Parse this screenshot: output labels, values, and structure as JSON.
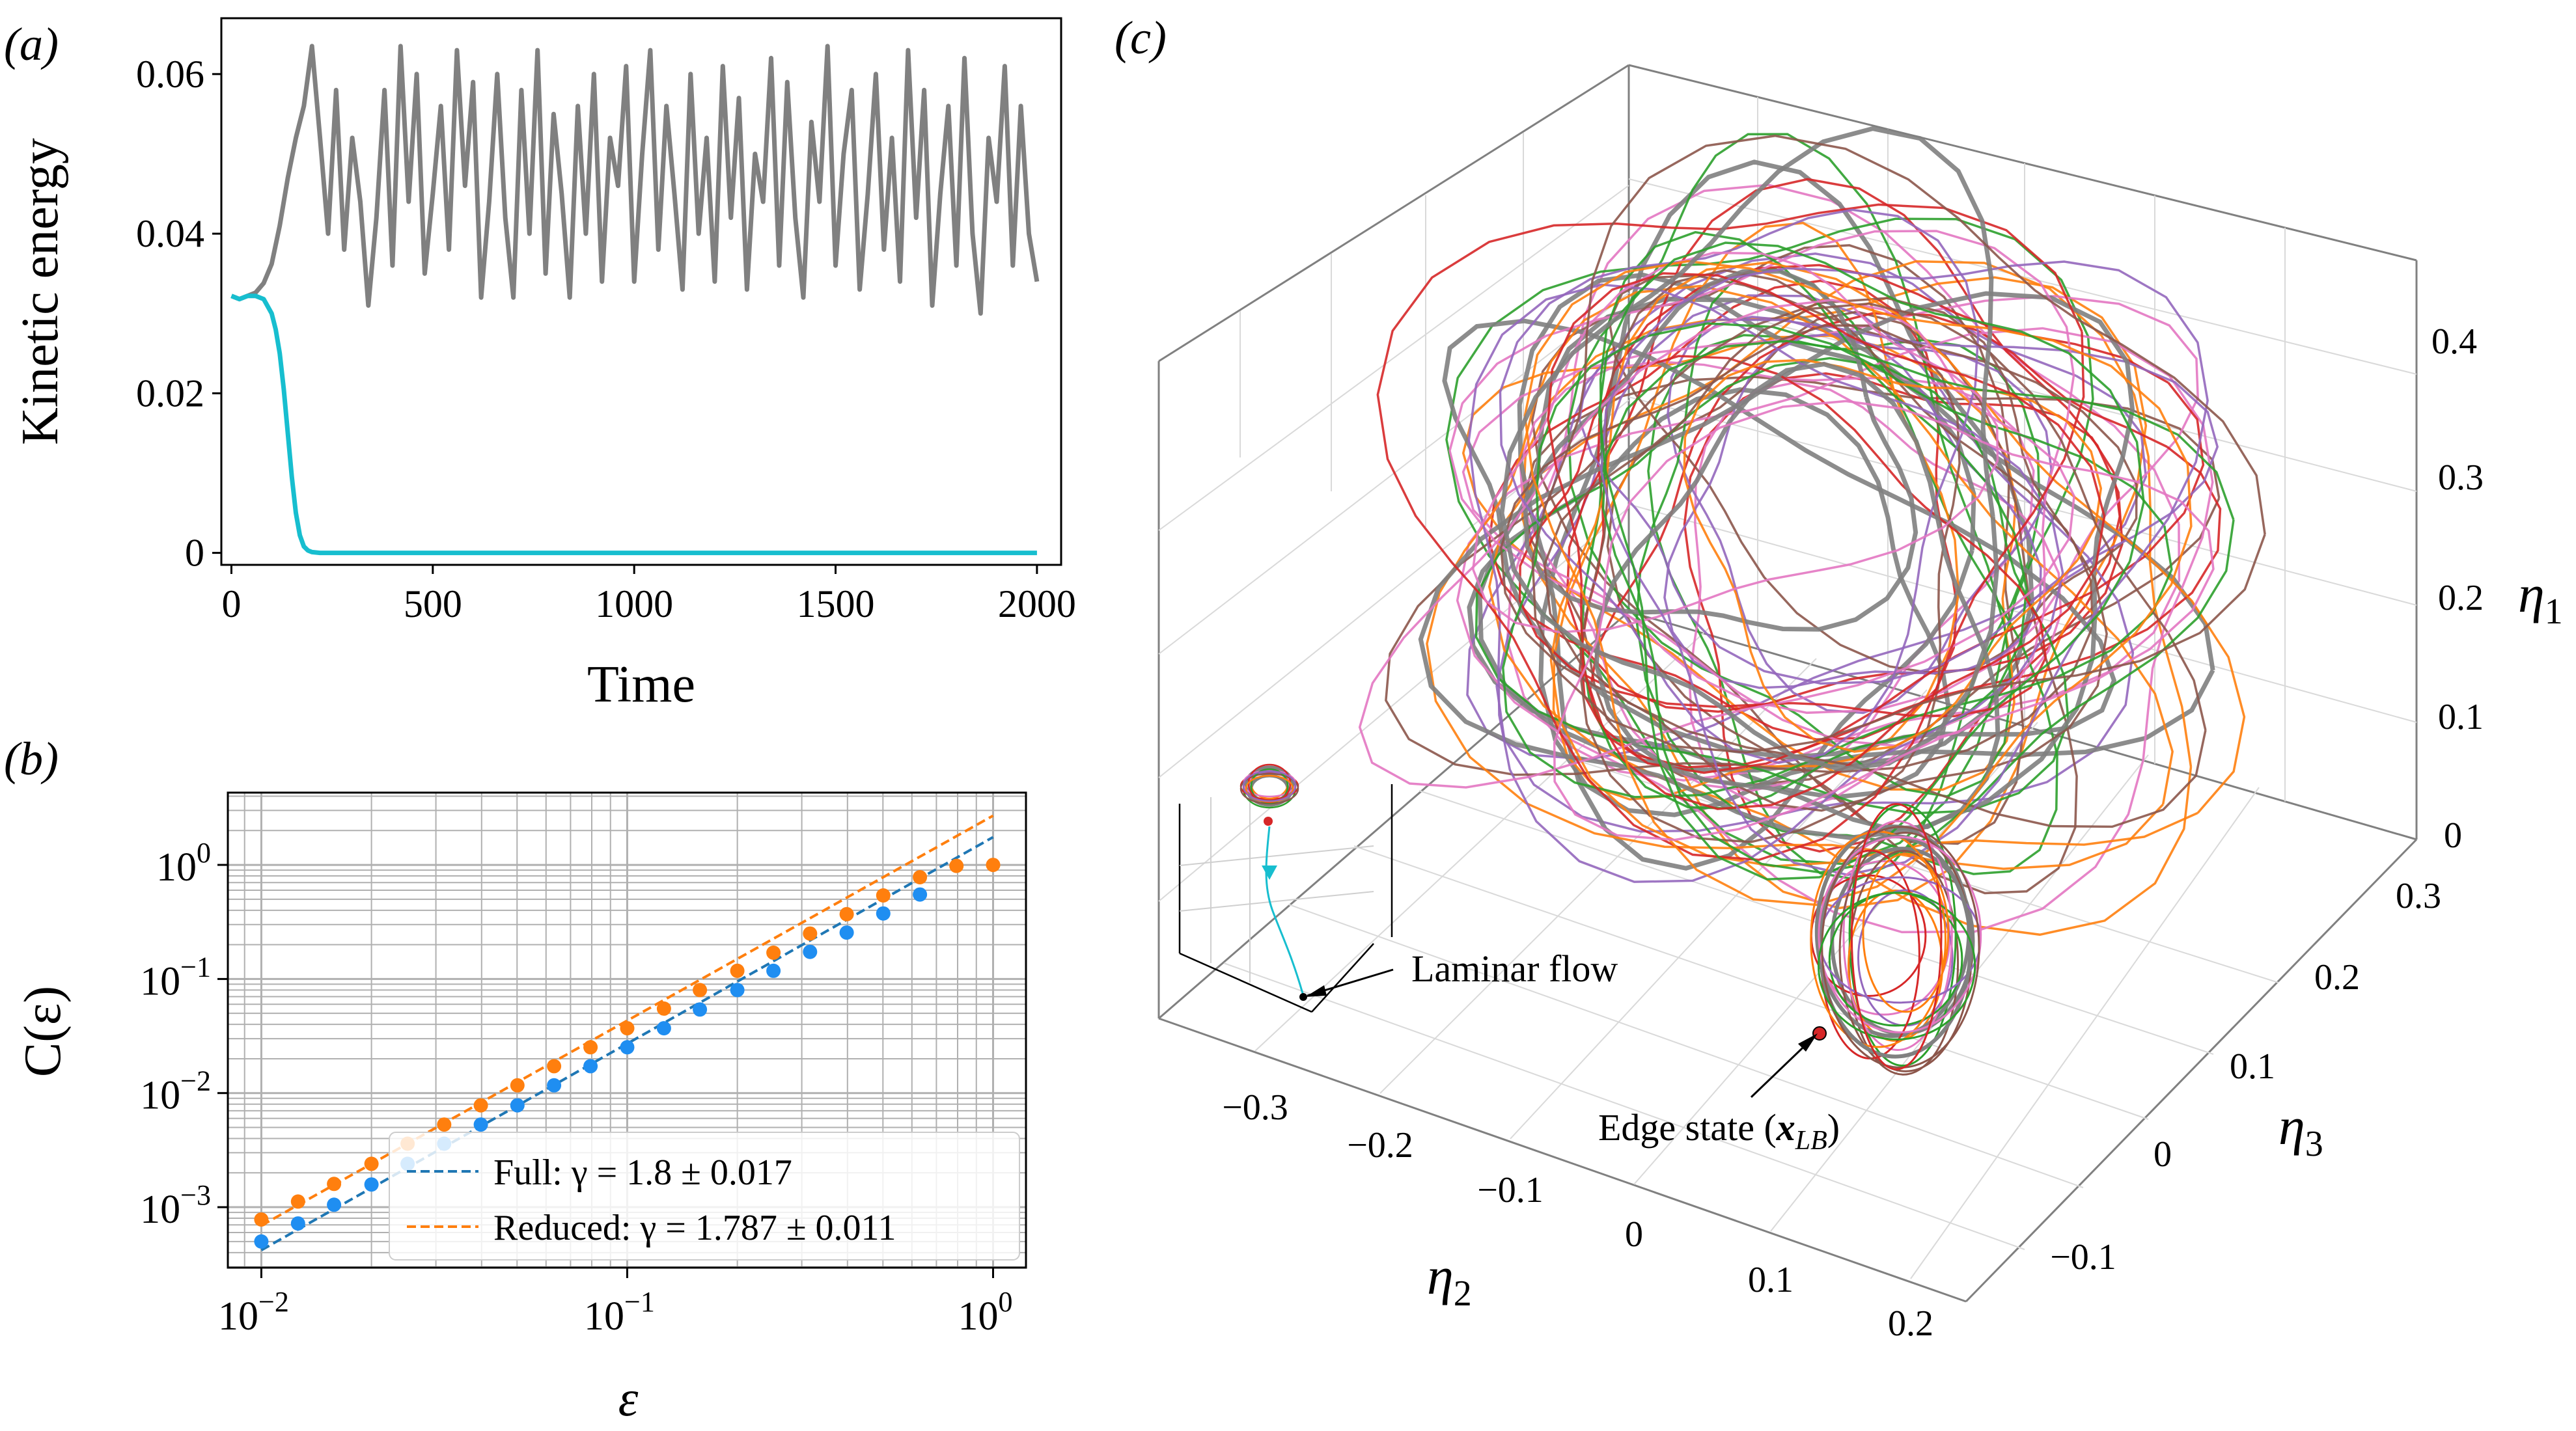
{
  "panel_labels": {
    "a": "(a)",
    "b": "(b)",
    "c": "(c)"
  },
  "colors": {
    "turbulent": "#808080",
    "laminar": "#17becf",
    "full": "#1f77b4",
    "full_marker": "#1f8ef1",
    "reduced": "#ff7f0e",
    "grid": "#b0b0b0",
    "traj": [
      "#808080",
      "#e377c2",
      "#8c564b",
      "#2ca02c",
      "#d62728",
      "#ff7f0e",
      "#9467bd"
    ]
  },
  "chart_data": [
    {
      "id": "a",
      "type": "line",
      "xlabel": "Time",
      "ylabel": "Kinetic energy",
      "xlim": [
        -25,
        2060
      ],
      "ylim": [
        -0.0015,
        0.067
      ],
      "xticks": [
        0,
        500,
        1000,
        1500,
        2000
      ],
      "xtick_labels": [
        "0",
        "500",
        "1000",
        "1500",
        "2000"
      ],
      "yticks": [
        0,
        0.02,
        0.04,
        0.06
      ],
      "ytick_labels": [
        "0",
        "0.02",
        "0.04",
        "0.06"
      ],
      "grid": false,
      "series": [
        {
          "color_key": "turbulent",
          "x": [
            0,
            20,
            40,
            60,
            80,
            100,
            120,
            140,
            160,
            180,
            200,
            220,
            240,
            260,
            280,
            300,
            320,
            340,
            360,
            380,
            400,
            420,
            440,
            460,
            480,
            500,
            520,
            540,
            560,
            580,
            600,
            620,
            640,
            660,
            680,
            700,
            720,
            740,
            760,
            780,
            800,
            820,
            840,
            860,
            880,
            900,
            920,
            940,
            960,
            980,
            1000,
            1020,
            1040,
            1060,
            1080,
            1100,
            1120,
            1140,
            1160,
            1180,
            1200,
            1220,
            1240,
            1260,
            1280,
            1300,
            1320,
            1340,
            1360,
            1380,
            1400,
            1420,
            1440,
            1460,
            1480,
            1500,
            1520,
            1540,
            1560,
            1580,
            1600,
            1620,
            1640,
            1660,
            1680,
            1700,
            1720,
            1740,
            1760,
            1780,
            1800,
            1820,
            1840,
            1860,
            1880,
            1900,
            1920,
            1940,
            1960,
            1980,
            2000
          ],
          "y": [
            0.0322,
            0.0318,
            0.0322,
            0.0326,
            0.0338,
            0.0362,
            0.041,
            0.047,
            0.052,
            0.056,
            0.0635,
            0.052,
            0.04,
            0.058,
            0.038,
            0.052,
            0.044,
            0.031,
            0.042,
            0.058,
            0.036,
            0.0635,
            0.044,
            0.06,
            0.035,
            0.045,
            0.056,
            0.038,
            0.063,
            0.046,
            0.059,
            0.032,
            0.044,
            0.06,
            0.042,
            0.032,
            0.058,
            0.04,
            0.063,
            0.035,
            0.055,
            0.045,
            0.032,
            0.056,
            0.04,
            0.06,
            0.034,
            0.052,
            0.046,
            0.061,
            0.034,
            0.05,
            0.063,
            0.038,
            0.056,
            0.045,
            0.033,
            0.06,
            0.04,
            0.052,
            0.034,
            0.061,
            0.042,
            0.057,
            0.033,
            0.05,
            0.044,
            0.062,
            0.036,
            0.059,
            0.042,
            0.032,
            0.054,
            0.044,
            0.0635,
            0.036,
            0.05,
            0.058,
            0.033,
            0.045,
            0.06,
            0.038,
            0.052,
            0.034,
            0.063,
            0.042,
            0.058,
            0.031,
            0.045,
            0.056,
            0.036,
            0.062,
            0.04,
            0.03,
            0.052,
            0.044,
            0.061,
            0.036,
            0.056,
            0.04,
            0.034
          ]
        },
        {
          "color_key": "laminar",
          "x": [
            0,
            20,
            40,
            60,
            80,
            100,
            110,
            120,
            130,
            140,
            150,
            160,
            170,
            180,
            190,
            200,
            220,
            240,
            260,
            300,
            400,
            600,
            800,
            1000,
            1200,
            1400,
            1600,
            1800,
            2000
          ],
          "y": [
            0.0322,
            0.0318,
            0.0322,
            0.0322,
            0.0318,
            0.03,
            0.028,
            0.025,
            0.0205,
            0.015,
            0.0095,
            0.005,
            0.0022,
            0.0008,
            0.0003,
            0.0001,
            0.0,
            0.0,
            0.0,
            0.0,
            0.0,
            0.0,
            0.0,
            0.0,
            0.0,
            0.0,
            0.0,
            0.0,
            0.0
          ]
        }
      ]
    },
    {
      "id": "b",
      "type": "scatter",
      "xscale": "log",
      "yscale": "log",
      "xlabel": "ε",
      "ylabel": "C(ε)",
      "xlim": [
        0.0081,
        1.23
      ],
      "ylim": [
        0.000295,
        4.3
      ],
      "xticks": [
        0.01,
        0.1,
        1
      ],
      "yticks": [
        0.001,
        0.01,
        0.1,
        1
      ],
      "grid": true,
      "legend_position": "lower-right",
      "series": [
        {
          "name": "Full",
          "color_key": "full_marker",
          "x": [
            0.01,
            0.0126,
            0.0158,
            0.02,
            0.0251,
            0.0316,
            0.0398,
            0.0501,
            0.0631,
            0.0794,
            0.1,
            0.126,
            0.158,
            0.2,
            0.251,
            0.316,
            0.398,
            0.501,
            0.631
          ],
          "y": [
            0.0005,
            0.00072,
            0.00105,
            0.00158,
            0.0024,
            0.0036,
            0.0053,
            0.0078,
            0.0117,
            0.0172,
            0.0252,
            0.037,
            0.054,
            0.08,
            0.118,
            0.173,
            0.255,
            0.375,
            0.55
          ]
        },
        {
          "name": "Reduced",
          "color_key": "reduced",
          "x": [
            0.01,
            0.0126,
            0.0158,
            0.02,
            0.0251,
            0.0316,
            0.0398,
            0.0501,
            0.0631,
            0.0794,
            0.1,
            0.126,
            0.158,
            0.2,
            0.251,
            0.316,
            0.398,
            0.501,
            0.631,
            0.794,
            1.0
          ],
          "y": [
            0.00078,
            0.00112,
            0.0016,
            0.0024,
            0.0036,
            0.0053,
            0.0078,
            0.0117,
            0.0172,
            0.0252,
            0.037,
            0.055,
            0.08,
            0.118,
            0.17,
            0.25,
            0.37,
            0.54,
            0.78,
            0.98,
            1.0
          ]
        }
      ],
      "fits": [
        {
          "label_prefix": "Full: ",
          "label_gamma": "γ = 1.8 ± 0.017",
          "color_key": "full",
          "x": [
            0.01,
            1.0
          ],
          "y": [
            0.00042,
            1.75
          ]
        },
        {
          "label_prefix": "Reduced: ",
          "label_gamma": "γ = 1.787 ± 0.011",
          "color_key": "reduced",
          "x": [
            0.01,
            1.0
          ],
          "y": [
            0.00069,
            2.7
          ]
        }
      ]
    },
    {
      "id": "c",
      "type": "line",
      "projection": "3d",
      "xlabel": "η2",
      "ylabel": "η3",
      "zlabel": "η1",
      "xtick_labels": [
        "−0.3",
        "−0.2",
        "−0.1",
        "0",
        "0.1",
        "0.2"
      ],
      "ytick_labels": [
        "−0.1",
        "0",
        "0.1",
        "0.2",
        "0.3"
      ],
      "ztick_labels": [
        "0",
        "0.1",
        "0.2",
        "0.3",
        "0.4"
      ],
      "annotations": [
        {
          "key": "laminar",
          "text": "Laminar flow"
        },
        {
          "key": "edge",
          "text": "Edge state (",
          "symbol": "x",
          "subscript": "LB",
          "suffix": ")"
        }
      ],
      "trajectory_count": 7
    }
  ]
}
